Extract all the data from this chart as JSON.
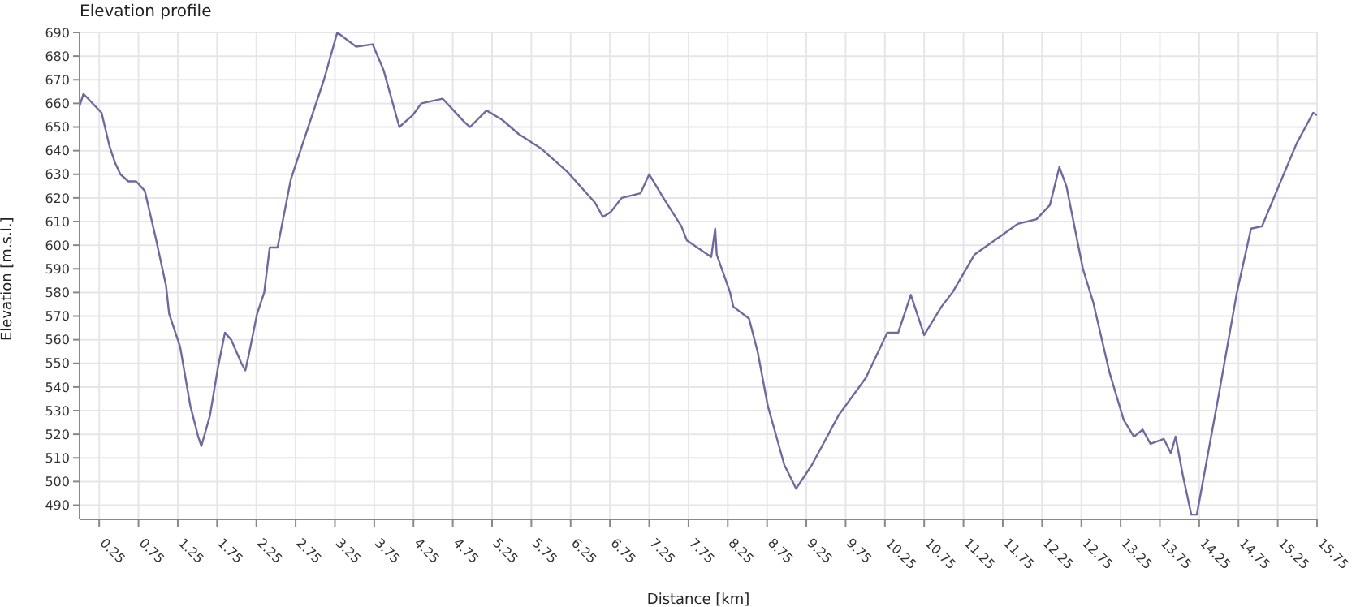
{
  "chart_data": {
    "type": "line",
    "title": "Elevation profile",
    "xlabel": "Distance [km]",
    "ylabel": "Elevation [m.s.l.]",
    "x": [
      0,
      0.05,
      0.28,
      0.38,
      0.45,
      0.52,
      0.62,
      0.72,
      0.83,
      0.97,
      1.1,
      1.14,
      1.28,
      1.41,
      1.51,
      1.55,
      1.66,
      1.76,
      1.85,
      1.93,
      2.06,
      2.11,
      2.15,
      2.26,
      2.35,
      2.42,
      2.52,
      2.69,
      2.83,
      3.11,
      3.28,
      3.52,
      3.73,
      3.87,
      4.07,
      4.24,
      4.35,
      4.62,
      4.9,
      4.97,
      5.18,
      5.38,
      5.59,
      5.87,
      6.21,
      6.56,
      6.66,
      6.76,
      6.9,
      7.14,
      7.25,
      7.45,
      7.66,
      7.73,
      8.04,
      8.09,
      8.11,
      8.28,
      8.32,
      8.52,
      8.63,
      8.76,
      8.97,
      9.12,
      9.32,
      9.66,
      10.01,
      10.28,
      10.42,
      10.58,
      10.75,
      10.97,
      11.11,
      11.39,
      11.94,
      12.18,
      12.35,
      12.47,
      12.56,
      12.77,
      12.9,
      13.11,
      13.29,
      13.42,
      13.53,
      13.63,
      13.8,
      13.89,
      13.95,
      14.04,
      14.15,
      14.22,
      14.49,
      14.73,
      14.91,
      15.05,
      15.25,
      15.49,
      15.7,
      15.75
    ],
    "series": [
      {
        "color": "#6f6a9e",
        "values": [
          659,
          664,
          656,
          642,
          635,
          630,
          627,
          627,
          623,
          603,
          583,
          571,
          557,
          532,
          519,
          515,
          528,
          548,
          563,
          560,
          550,
          547,
          553,
          571,
          580,
          599,
          599,
          628,
          642,
          670,
          690,
          684,
          685,
          674,
          650,
          655,
          660,
          662,
          652,
          650,
          657,
          653,
          647,
          641,
          631,
          618,
          612,
          614,
          620,
          622,
          630,
          619,
          608,
          602,
          595,
          607,
          596,
          580,
          574,
          569,
          555,
          532,
          507,
          497,
          507,
          528,
          544,
          563,
          563,
          579,
          562,
          574,
          580,
          596,
          609,
          611,
          617,
          633,
          625,
          590,
          576,
          546,
          526,
          519,
          522,
          516,
          518,
          512,
          519,
          503,
          486,
          486,
          535,
          580,
          607,
          608,
          624,
          643,
          656,
          655
        ]
      }
    ],
    "xlim": [
      0,
      15.75
    ],
    "ylim": [
      484,
      690
    ],
    "xticks": [
      0.25,
      0.75,
      1.25,
      1.75,
      2.25,
      2.75,
      3.25,
      3.75,
      4.25,
      4.75,
      5.25,
      5.75,
      6.25,
      6.75,
      7.25,
      7.75,
      8.25,
      8.75,
      9.25,
      9.75,
      10.25,
      10.75,
      11.25,
      11.75,
      12.25,
      12.75,
      13.25,
      13.75,
      14.25,
      14.75,
      15.25,
      15.75
    ],
    "yticks": [
      490,
      500,
      510,
      520,
      530,
      540,
      550,
      560,
      570,
      580,
      590,
      600,
      610,
      620,
      630,
      640,
      650,
      660,
      670,
      680,
      690
    ],
    "grid": true,
    "legend": false,
    "marker": "none",
    "line_style": "solid"
  }
}
